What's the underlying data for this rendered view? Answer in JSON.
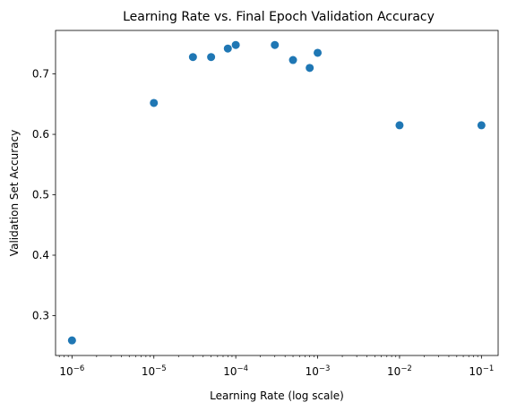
{
  "chart_data": {
    "type": "scatter",
    "title": "Learning Rate vs. Final Epoch Validation Accuracy",
    "xlabel": "Learning Rate (log scale)",
    "ylabel": "Validation Set Accuracy",
    "xscale": "log",
    "xlim": [
      6.3e-07,
      0.16
    ],
    "ylim": [
      0.234,
      0.772
    ],
    "grid": false,
    "marker_color": "#1f77b4",
    "x_ticks": [
      {
        "value": 1e-06,
        "base": "10",
        "exp": "−6"
      },
      {
        "value": 1e-05,
        "base": "10",
        "exp": "−5"
      },
      {
        "value": 0.0001,
        "base": "10",
        "exp": "−4"
      },
      {
        "value": 0.001,
        "base": "10",
        "exp": "−3"
      },
      {
        "value": 0.01,
        "base": "10",
        "exp": "−2"
      },
      {
        "value": 0.1,
        "base": "10",
        "exp": "−1"
      }
    ],
    "y_ticks": [
      {
        "value": 0.3,
        "label": "0.3"
      },
      {
        "value": 0.4,
        "label": "0.4"
      },
      {
        "value": 0.5,
        "label": "0.5"
      },
      {
        "value": 0.6,
        "label": "0.6"
      },
      {
        "value": 0.7,
        "label": "0.7"
      }
    ],
    "points": [
      {
        "x": 1e-06,
        "y": 0.259
      },
      {
        "x": 1e-05,
        "y": 0.652
      },
      {
        "x": 3e-05,
        "y": 0.728
      },
      {
        "x": 5e-05,
        "y": 0.728
      },
      {
        "x": 8e-05,
        "y": 0.742
      },
      {
        "x": 0.0001,
        "y": 0.748
      },
      {
        "x": 0.0003,
        "y": 0.748
      },
      {
        "x": 0.0005,
        "y": 0.723
      },
      {
        "x": 0.0008,
        "y": 0.71
      },
      {
        "x": 0.001,
        "y": 0.735
      },
      {
        "x": 0.01,
        "y": 0.615
      },
      {
        "x": 0.1,
        "y": 0.615
      }
    ]
  }
}
